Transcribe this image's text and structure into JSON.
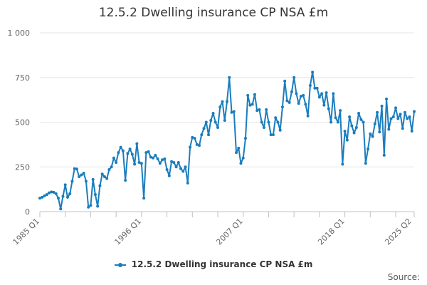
{
  "colors": {
    "series": "#1a7dbd",
    "grid": "#e6e6e6",
    "axis": "#c0c0c0",
    "text": "#666666"
  },
  "source_label": "Source:",
  "chart_data": {
    "type": "line",
    "title": "12.5.2 Dwelling insurance CP NSA £m",
    "xlabel": "",
    "ylabel": "",
    "ylim": [
      0,
      1000
    ],
    "yticks": [
      0,
      250,
      500,
      750,
      1000
    ],
    "ytick_labels": [
      "0",
      "250",
      "500",
      "750",
      "1 000"
    ],
    "xtick_labels": [
      "1985 Q1",
      "1996 Q1",
      "2007 Q1",
      "2018 Q1",
      "2025 Q2"
    ],
    "xtick_positions": [
      0,
      44,
      88,
      132,
      161
    ],
    "grid": true,
    "legend": "bottom-center",
    "series": [
      {
        "name": "12.5.2 Dwelling insurance CP NSA £m",
        "values": [
          75,
          80,
          88,
          95,
          105,
          110,
          108,
          100,
          75,
          15,
          85,
          150,
          80,
          100,
          170,
          240,
          238,
          195,
          205,
          215,
          170,
          25,
          35,
          180,
          95,
          30,
          145,
          210,
          195,
          185,
          235,
          250,
          300,
          275,
          330,
          360,
          340,
          175,
          325,
          350,
          320,
          265,
          380,
          275,
          270,
          75,
          330,
          335,
          305,
          300,
          315,
          295,
          270,
          290,
          295,
          235,
          200,
          280,
          275,
          250,
          275,
          240,
          225,
          250,
          160,
          360,
          415,
          410,
          375,
          370,
          430,
          465,
          500,
          430,
          510,
          550,
          500,
          470,
          585,
          615,
          510,
          615,
          750,
          555,
          560,
          330,
          355,
          270,
          300,
          410,
          650,
          595,
          600,
          655,
          565,
          570,
          500,
          470,
          570,
          500,
          430,
          430,
          525,
          500,
          455,
          585,
          730,
          620,
          610,
          670,
          750,
          660,
          605,
          645,
          650,
          600,
          535,
          705,
          780,
          690,
          690,
          640,
          660,
          595,
          665,
          575,
          500,
          660,
          525,
          500,
          565,
          265,
          450,
          400,
          530,
          480,
          440,
          470,
          550,
          515,
          500,
          270,
          350,
          435,
          420,
          490,
          555,
          445,
          590,
          315,
          630,
          460,
          520,
          530,
          580,
          520,
          545,
          465,
          555,
          520,
          530,
          450,
          560
        ]
      }
    ]
  }
}
